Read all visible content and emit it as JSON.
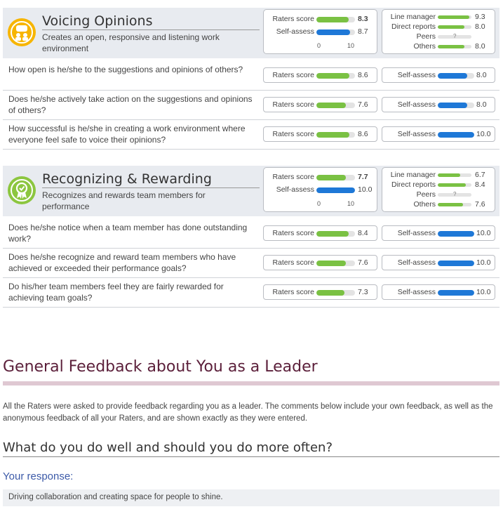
{
  "competencies": [
    {
      "title": "Voicing Opinions",
      "description": "Creates an open, responsive and listening work environment",
      "icon": "speech-people-icon",
      "icon_color": "#f7b500",
      "summary": {
        "raters_label": "Raters score",
        "raters_value": "8.3",
        "raters_num": 8.3,
        "self_label": "Self-assess",
        "self_value": "8.7",
        "self_num": 8.7,
        "axis_min": "0",
        "axis_max": "10"
      },
      "breakdown": [
        {
          "label": "Line manager",
          "value": "9.3",
          "num": 9.3
        },
        {
          "label": "Direct reports",
          "value": "8.0",
          "num": 8.0
        },
        {
          "label": "Peers",
          "value": "",
          "num": null,
          "mark": "?"
        },
        {
          "label": "Others",
          "value": "8.0",
          "num": 8.0
        }
      ],
      "questions": [
        {
          "text": "How open is he/she to the suggestions and opinions of others?",
          "raters_label": "Raters score",
          "raters_value": "8.6",
          "raters_num": 8.6,
          "self_label": "Self-assess",
          "self_value": "8.0",
          "self_num": 8.0
        },
        {
          "text": "Does he/she actively take action on the suggestions and opinions of others?",
          "raters_label": "Raters score",
          "raters_value": "7.6",
          "raters_num": 7.6,
          "self_label": "Self-assess",
          "self_value": "8.0",
          "self_num": 8.0
        },
        {
          "text": "How successful is he/she in creating a work environment where everyone feel safe to voice their opinions?",
          "raters_label": "Raters score",
          "raters_value": "8.6",
          "raters_num": 8.6,
          "self_label": "Self-assess",
          "self_value": "10.0",
          "self_num": 10.0
        }
      ]
    },
    {
      "title": "Recognizing & Rewarding",
      "description": "Recognizes and rewards team members for performance",
      "icon": "award-ribbon-icon",
      "icon_color": "#8cc63f",
      "summary": {
        "raters_label": "Raters score",
        "raters_value": "7.7",
        "raters_num": 7.7,
        "self_label": "Self-assess",
        "self_value": "10.0",
        "self_num": 10.0,
        "axis_min": "0",
        "axis_max": "10"
      },
      "breakdown": [
        {
          "label": "Line manager",
          "value": "6.7",
          "num": 6.7
        },
        {
          "label": "Direct reports",
          "value": "8.4",
          "num": 8.4
        },
        {
          "label": "Peers",
          "value": "",
          "num": null,
          "mark": "?"
        },
        {
          "label": "Others",
          "value": "7.6",
          "num": 7.6
        }
      ],
      "questions": [
        {
          "text": "Does he/she notice when a team member has done outstanding work?",
          "raters_label": "Raters score",
          "raters_value": "8.4",
          "raters_num": 8.4,
          "self_label": "Self-assess",
          "self_value": "10.0",
          "self_num": 10.0
        },
        {
          "text": "Does he/she recognize and reward team members who have achieved or exceeded their performance goals?",
          "raters_label": "Raters score",
          "raters_value": "7.6",
          "raters_num": 7.6,
          "self_label": "Self-assess",
          "self_value": "10.0",
          "self_num": 10.0
        },
        {
          "text": "Do his/her team members feel they are fairly rewarded for achieving team goals?",
          "raters_label": "Raters score",
          "raters_value": "7.3",
          "raters_num": 7.3,
          "self_label": "Self-assess",
          "self_value": "10.0",
          "self_num": 10.0
        }
      ]
    }
  ],
  "colors": {
    "raters_bar": "#7ac143",
    "self_bar": "#1e78d7",
    "section_title": "#5b1f3a",
    "response_label": "#3c5aa8"
  },
  "general_feedback": {
    "title": "General Feedback about You as a Leader",
    "intro": "All the Raters were asked to provide feedback regarding you as a leader. The comments below include your own feedback, as well as the anonymous feedback of all your Raters, and are shown exactly as they were entered.",
    "question": "What do you do well and should you do more often?",
    "response_label": "Your response:",
    "response_text": "Driving collaboration and creating space for people to shine."
  }
}
